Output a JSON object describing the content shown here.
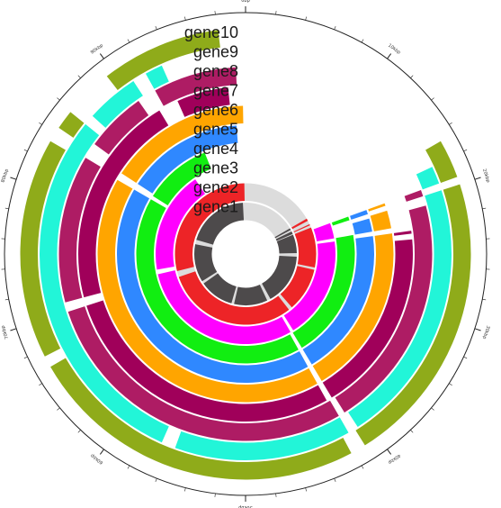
{
  "track_labels": [
    "gene1",
    "gene2",
    "gene3",
    "gene4",
    "gene5",
    "gene6",
    "gene7",
    "gene8",
    "gene9",
    "gene10"
  ],
  "track_colors": [
    "#4d4a4b",
    "#ed2427",
    "#ff00ff",
    "#11ee11",
    "#2f88ff",
    "#ffa500",
    "#a0005a",
    "#ae1c64",
    "#22f5d8",
    "#8fab1a"
  ],
  "track_backgrounds": [
    "#dcdcdc",
    "#dcdcdc",
    null,
    null,
    null,
    null,
    null,
    null,
    null,
    null
  ],
  "axis_tick_labels": [
    "0bp",
    "10kbp",
    "20kbp",
    "30kbp",
    "40kbp",
    "50kbp",
    "60kbp",
    "70kbp",
    "80kbp",
    "90kbp",
    "100kbp"
  ],
  "tracks": [
    {
      "name": "gene1",
      "segments": [
        [
          60,
          62
        ],
        [
          64,
          67
        ],
        [
          68,
          89
        ],
        [
          93,
          151
        ],
        [
          155,
          193
        ],
        [
          196,
          235
        ],
        [
          238,
          281
        ],
        [
          286,
          357
        ]
      ]
    },
    {
      "name": "gene2",
      "segments": [
        [
          60,
          62
        ],
        [
          65,
          66
        ],
        [
          68,
          101
        ],
        [
          103,
          139
        ],
        [
          142,
          251
        ],
        [
          256,
          359
        ]
      ]
    },
    {
      "name": "gene3",
      "segments": [
        [
          70,
          80
        ],
        [
          82,
          148
        ],
        [
          150,
          257
        ],
        [
          260,
          326
        ]
      ]
    },
    {
      "name": "gene4",
      "segments": [
        [
          70,
          72
        ],
        [
          80,
          149
        ],
        [
          151,
          300
        ],
        [
          302,
          338
        ]
      ]
    },
    {
      "name": "gene5",
      "segments": [
        [
          70,
          72
        ],
        [
          74,
          80
        ],
        [
          82,
          149
        ],
        [
          151,
          300
        ],
        [
          303,
          356
        ]
      ]
    },
    {
      "name": "gene6",
      "segments": [
        [
          70,
          71
        ],
        [
          73,
          80
        ],
        [
          82,
          149
        ],
        [
          151,
          300
        ],
        [
          303,
          359
        ]
      ]
    },
    {
      "name": "gene7",
      "segments": [
        [
          82,
          83
        ],
        [
          85,
          149
        ],
        [
          151,
          252
        ],
        [
          255,
          329
        ],
        [
          336,
          354
        ]
      ]
    },
    {
      "name": "gene8",
      "segments": [
        [
          70,
          72
        ],
        [
          75,
          148
        ],
        [
          150,
          252
        ],
        [
          255,
          301
        ],
        [
          306,
          325
        ],
        [
          331,
          357
        ]
      ]
    },
    {
      "name": "gene9",
      "segments": [
        [
          65,
          70
        ],
        [
          72,
          147
        ],
        [
          150,
          200
        ],
        [
          204,
          309
        ],
        [
          312,
          327
        ],
        [
          331,
          336
        ]
      ]
    },
    {
      "name": "gene10",
      "segments": [
        [
          60,
          70
        ],
        [
          72,
          148
        ],
        [
          152,
          240
        ],
        [
          243,
          300
        ],
        [
          304,
          309
        ],
        [
          322,
          353
        ]
      ]
    }
  ]
}
